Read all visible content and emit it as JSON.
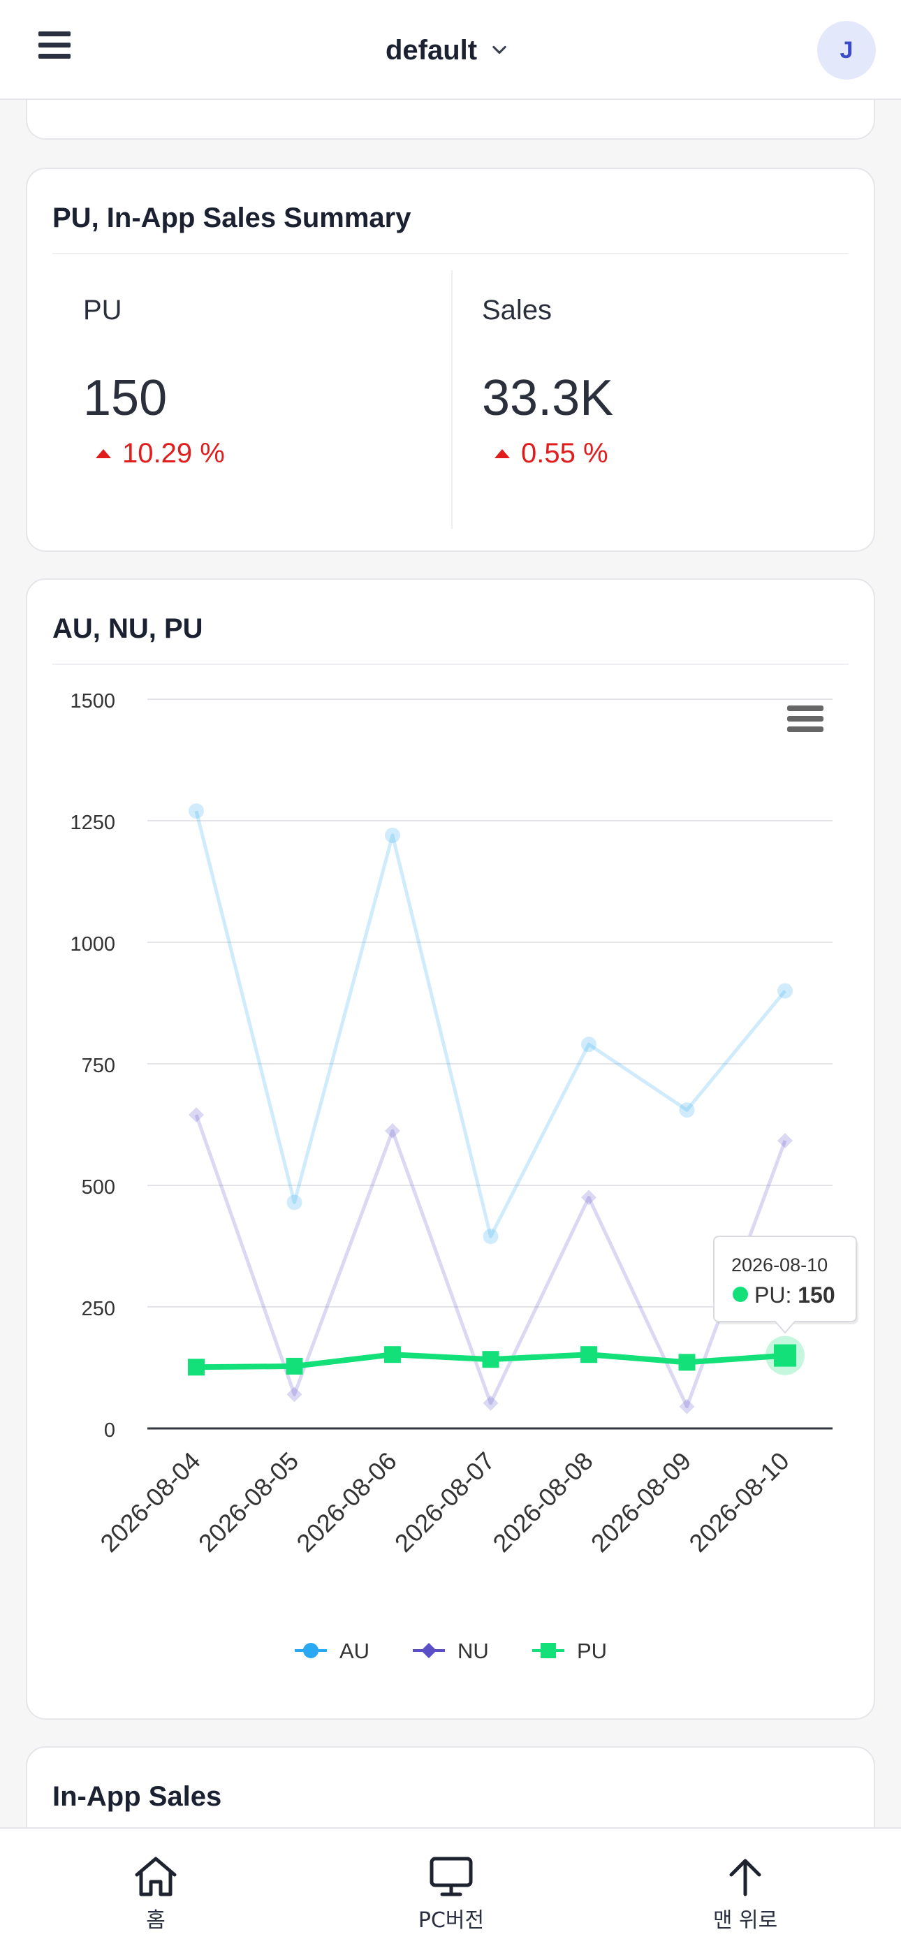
{
  "header": {
    "project_name": "default",
    "avatar_initial": "J"
  },
  "summary_card": {
    "title": "PU, In-App Sales Summary",
    "metrics": [
      {
        "label": "PU",
        "value": "150",
        "delta": "10.29 %",
        "direction": "up"
      },
      {
        "label": "Sales",
        "value": "33.3K",
        "delta": "0.55 %",
        "direction": "up"
      }
    ]
  },
  "chart_card": {
    "title": "AU, NU, PU",
    "tooltip": {
      "date": "2026-08-10",
      "series": "PU",
      "value": "150"
    }
  },
  "chart_data": {
    "type": "line",
    "x": [
      "2026-08-04",
      "2026-08-05",
      "2026-08-06",
      "2026-08-07",
      "2026-08-08",
      "2026-08-09",
      "2026-08-10"
    ],
    "yticks": [
      "0",
      "250",
      "500",
      "750",
      "1000",
      "1250",
      "1500"
    ],
    "ylim": [
      0,
      1500
    ],
    "grid": true,
    "legend_position": "bottom",
    "highlighted_series": "PU",
    "series": [
      {
        "name": "AU",
        "marker": "circle",
        "color": "#2aa8f2",
        "values": [
          1270,
          465,
          1220,
          395,
          790,
          655,
          900
        ]
      },
      {
        "name": "NU",
        "marker": "diamond",
        "color": "#5b4fc8",
        "values": [
          645,
          70,
          612,
          52,
          475,
          45,
          592
        ]
      },
      {
        "name": "PU",
        "marker": "square",
        "color": "#14e07a",
        "values": [
          126,
          128,
          152,
          142,
          152,
          136,
          150
        ]
      }
    ]
  },
  "next_card": {
    "title": "In-App Sales"
  },
  "bottom_nav": {
    "items": [
      {
        "label": "홈",
        "icon": "home-icon"
      },
      {
        "label": "PC버전",
        "icon": "monitor-icon"
      },
      {
        "label": "맨 위로",
        "icon": "arrow-up-icon"
      }
    ]
  }
}
